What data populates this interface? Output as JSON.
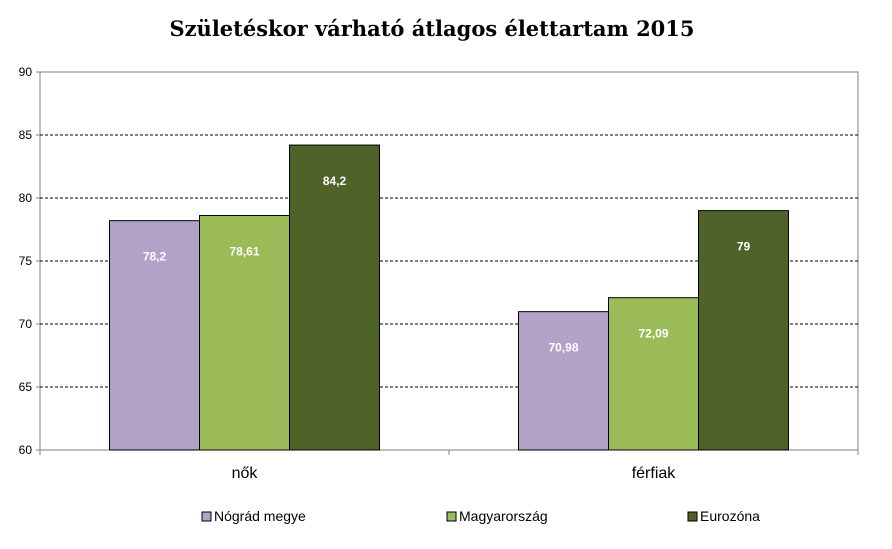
{
  "chart_data": {
    "type": "bar",
    "title": "Születéskor várható átlagos élettartam 2015",
    "categories": [
      "nők",
      "férfiak"
    ],
    "series": [
      {
        "name": "Nógrád megye",
        "color": "#b3a2c7",
        "values": [
          78.2,
          70.98
        ],
        "labels": [
          "78,2",
          "70,98"
        ]
      },
      {
        "name": "Magyarország",
        "color": "#9bbb59",
        "values": [
          78.61,
          72.09
        ],
        "labels": [
          "78,61",
          "72,09"
        ]
      },
      {
        "name": "Eurozóna",
        "color": "#4f6228",
        "values": [
          84.2,
          79
        ],
        "labels": [
          "84,2",
          "79"
        ]
      }
    ],
    "ylim": [
      60,
      90
    ],
    "yticks": [
      60,
      65,
      70,
      75,
      80,
      85,
      90
    ],
    "xlabel": "",
    "ylabel": "",
    "grid": true,
    "legend_position": "bottom"
  }
}
